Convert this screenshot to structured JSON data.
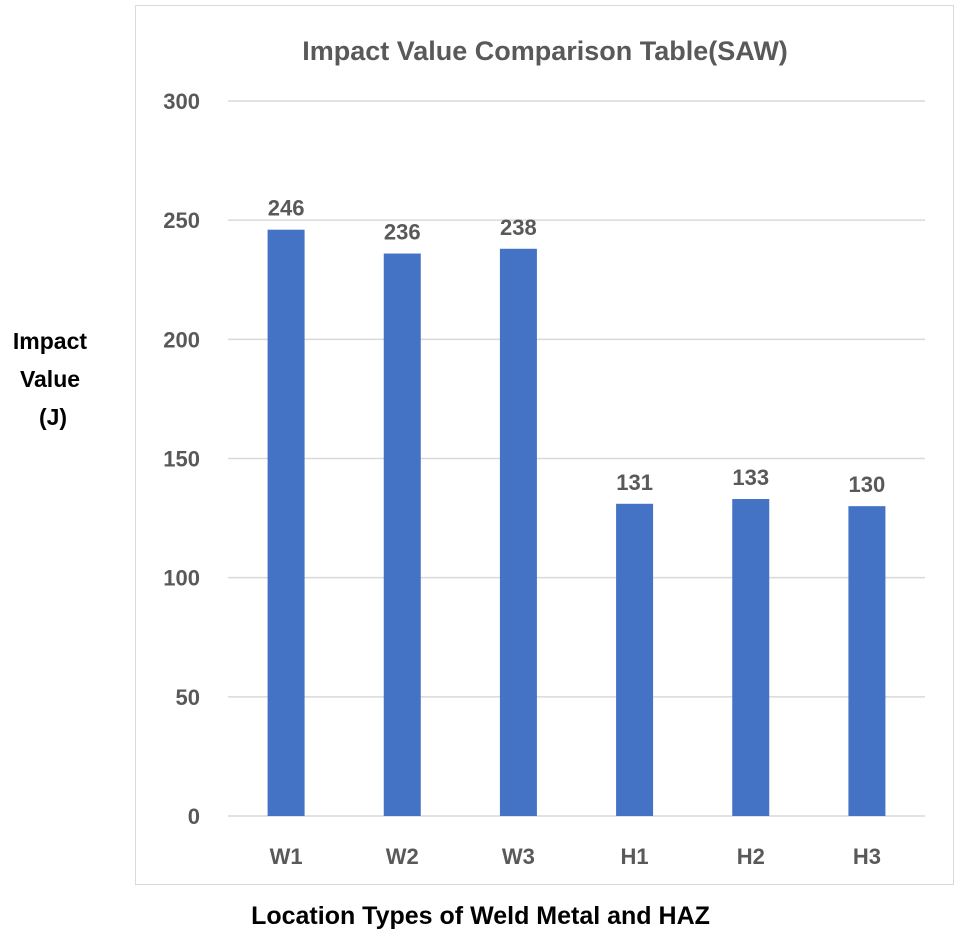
{
  "chart_data": {
    "type": "bar",
    "title": "Impact Value Comparison Table(SAW)",
    "categories": [
      "W1",
      "W2",
      "W3",
      "H1",
      "H2",
      "H3"
    ],
    "values": [
      246,
      236,
      238,
      131,
      133,
      130
    ],
    "data_labels": [
      "246",
      "236",
      "238",
      "131",
      "133",
      "130"
    ],
    "ylabel_lines": [
      "Impact",
      "Value",
      "(J)"
    ],
    "xlabel": "Location Types of Weld Metal and HAZ",
    "ylim": [
      0,
      300
    ],
    "yticks": [
      0,
      50,
      100,
      150,
      200,
      250,
      300
    ],
    "grid": true,
    "legend": "none",
    "bar_color": "#4472C4",
    "grid_color": "#d9d9d9",
    "text_color": "#595959",
    "title_color": "#595959"
  }
}
